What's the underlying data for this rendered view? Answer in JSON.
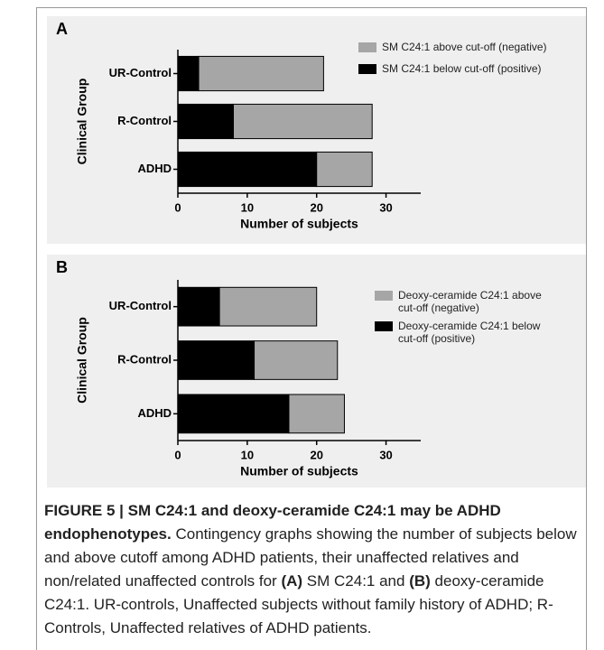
{
  "chart_data": [
    {
      "type": "bar",
      "orientation": "horizontal",
      "stacked": true,
      "label": "A",
      "x_label": "Number of subjects",
      "y_label": "Clinical Group",
      "categories": [
        "UR-Control",
        "R-Control",
        "ADHD"
      ],
      "series": [
        {
          "name": "SM C24:1 above cut-off (negative)",
          "color": "#a6a6a6",
          "values": [
            18,
            20,
            8
          ]
        },
        {
          "name": "SM C24:1 below cut-off (positive)",
          "color": "#000000",
          "values": [
            3,
            8,
            20
          ]
        }
      ],
      "xlim": [
        0,
        35
      ],
      "xticks": [
        0,
        10,
        20,
        30
      ]
    },
    {
      "type": "bar",
      "orientation": "horizontal",
      "stacked": true,
      "label": "B",
      "x_label": "Number of subjects",
      "y_label": "Clinical Group",
      "categories": [
        "UR-Control",
        "R-Control",
        "ADHD"
      ],
      "series": [
        {
          "name": "Deoxy-ceramide C24:1 above cut-off (negative)",
          "color": "#a6a6a6",
          "values": [
            14,
            12,
            8
          ]
        },
        {
          "name": "Deoxy-ceramide C24:1 below cut-off (positive)",
          "color": "#000000",
          "values": [
            6,
            11,
            16
          ]
        }
      ],
      "xlim": [
        0,
        35
      ],
      "xticks": [
        0,
        10,
        20,
        30
      ]
    }
  ],
  "caption": {
    "title": "FIGURE 5 | SM C24:1 and deoxy-ceramide C24:1 may be ADHD endophenotypes.",
    "text": [
      "Contingency graphs showing the number of subjects below and above cutoff among ADHD patients, their unaffected relatives and non/related unaffected controls for",
      "(A)",
      "SM C24:1 and",
      "(B)",
      "deoxy-ceramide C24:1. UR-controls, Unaffected subjects without family history of ADHD; R-Controls, Unaffected relatives of ADHD patients."
    ]
  }
}
